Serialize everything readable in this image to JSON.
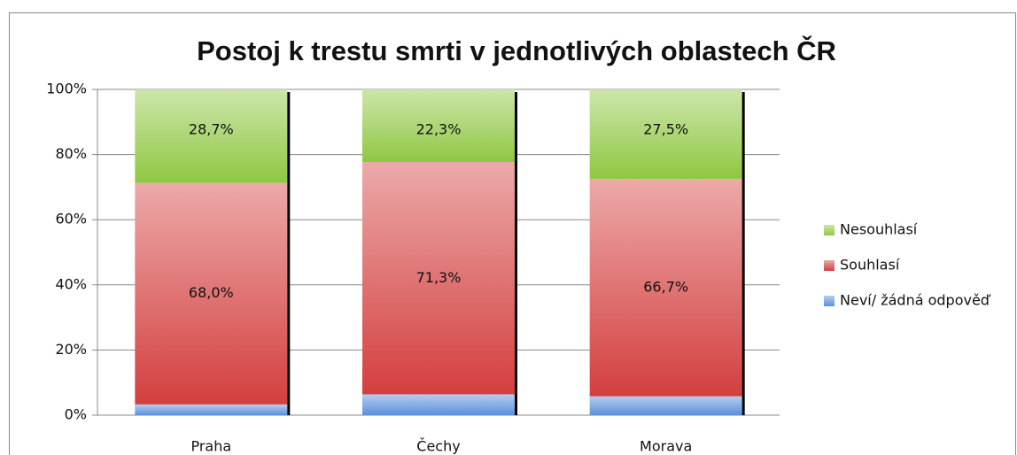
{
  "chart_data": {
    "type": "stacked_bar",
    "title": "Postoj k trestu smrti v jednotlivých oblastech ČR",
    "categories": [
      "Praha",
      "Čechy",
      "Morava"
    ],
    "series": [
      {
        "name": "Neví/ žádná odpověď",
        "color": "#5b8fdc",
        "values": [
          3.3,
          6.4,
          5.8
        ]
      },
      {
        "name": "Souhlasí",
        "color": "#d43f3f",
        "values": [
          68.0,
          71.3,
          66.7
        ],
        "value_labels": [
          "68,0%",
          "71,3%",
          "66,7%"
        ]
      },
      {
        "name": "Nesouhlasí",
        "color": "#8fc742",
        "values": [
          28.7,
          22.3,
          27.5
        ],
        "value_labels": [
          "28,7%",
          "22,3%",
          "27,5%"
        ]
      }
    ],
    "ylim": [
      0,
      100
    ],
    "yticks": [
      {
        "value": 0,
        "label": "0%"
      },
      {
        "value": 20,
        "label": "20%"
      },
      {
        "value": 40,
        "label": "40%"
      },
      {
        "value": 60,
        "label": "60%"
      },
      {
        "value": 80,
        "label": "80%"
      },
      {
        "value": 100,
        "label": "100%"
      }
    ],
    "grid": true,
    "legend": "right"
  }
}
